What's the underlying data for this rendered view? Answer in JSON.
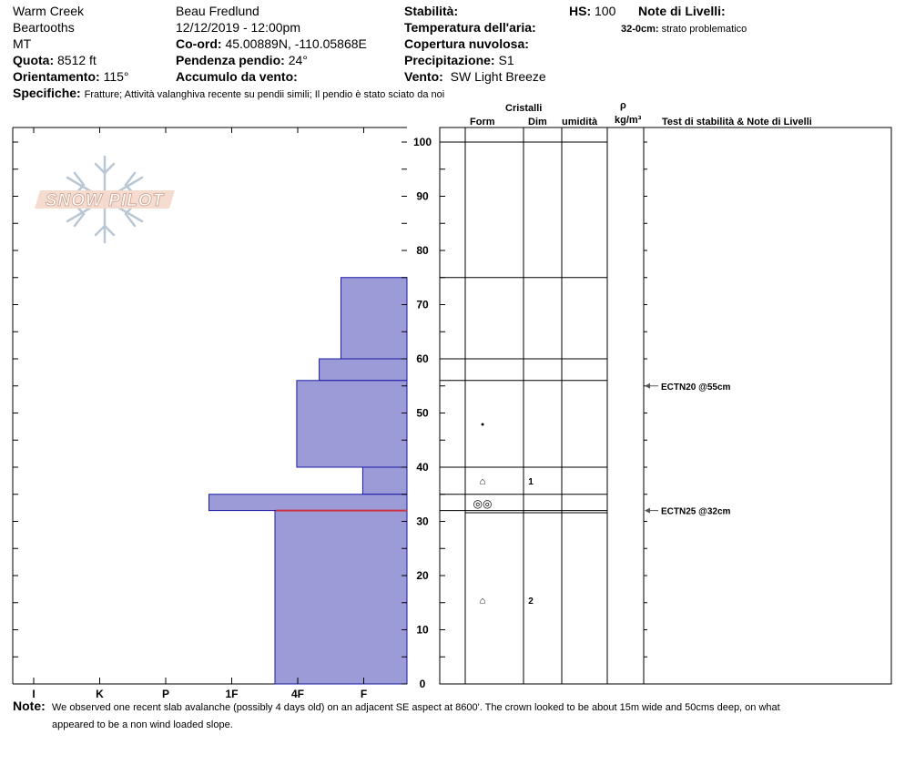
{
  "header": {
    "location": "Warm Creek",
    "range": "Beartooths",
    "state": "MT",
    "elevation_label": "Quota:",
    "elevation_value": "8512 ft",
    "aspect_label": "Orientamento:",
    "aspect_value": "115°",
    "observer": "Beau  Fredlund",
    "datetime": "12/12/2019 - 12:00pm",
    "coord_label": "Co-ord:",
    "coord_value": "45.00889N, -110.05868E",
    "slope_label": "Pendenza pendio:",
    "slope_value": "24°",
    "wind_loading_label": "Accumulo da vento:",
    "wind_loading_value": "",
    "stability_label": "Stabilità:",
    "stability_value": "",
    "air_temp_label": "Temperatura dell'aria:",
    "air_temp_value": "",
    "sky_label": "Copertura nuvolosa:",
    "sky_value": "",
    "precip_label": "Precipitazione:",
    "precip_value": "S1",
    "wind_label": "Vento:",
    "wind_value": "SW Light Breeze",
    "hs_label": "HS:",
    "hs_value": "100",
    "layer_notes_label": "Note di Livelli:",
    "layer_note_depth": "32-0cm:",
    "layer_note_text": "strato problematico",
    "specifics_label": "Specifiche:",
    "specifics_value": "Fratture;  Attività valanghiva recente su pendii simili;  Il pendio è stato sciato da noi"
  },
  "logo": {
    "text": "SNOW PILOT"
  },
  "columns": {
    "crystals": "Cristalli",
    "form": "Form",
    "size": "Dim",
    "moisture": "umidità",
    "rho": "ρ",
    "density_unit": "kg/m³",
    "tests": "Test di stabilità & Note di Livelli"
  },
  "footer": {
    "note_label": "Note:",
    "note_line1": "We observed one recent slab avalanche (possibly 4 days old) on an adjacent SE aspect at 8600'.  The crown looked to be about 15m wide and 50cms deep, on what",
    "note_line2": "appeared to be a non wind loaded slope."
  },
  "colors": {
    "hardness_fill": "#9b9bd8",
    "hardness_stroke": "#1a1aa6",
    "weak_layer": "#cc3344"
  },
  "chart_data": {
    "type": "bar",
    "title": "",
    "xlabel": "",
    "ylabel": "",
    "hardness_categories": [
      "I",
      "K",
      "P",
      "1F",
      "4F",
      "F"
    ],
    "height_ticks": [
      0,
      10,
      20,
      30,
      40,
      50,
      60,
      70,
      80,
      90,
      100
    ],
    "ylim": [
      0,
      100
    ],
    "layers": [
      {
        "top": 100,
        "bottom": 75,
        "hardness_index": 6
      },
      {
        "top": 75,
        "bottom": 60,
        "hardness_index": 5
      },
      {
        "top": 60,
        "bottom": 56,
        "hardness_index": 4.67
      },
      {
        "top": 56,
        "bottom": 40,
        "hardness_index": 4.33
      },
      {
        "top": 40,
        "bottom": 35,
        "hardness_index": 5.33
      },
      {
        "top": 35,
        "bottom": 32,
        "hardness_index": 3
      },
      {
        "top": 32,
        "bottom": 0,
        "hardness_index": 4
      }
    ],
    "weak_layer_height": 32,
    "grains": [
      {
        "height": 48,
        "symbol": "•",
        "size": ""
      },
      {
        "height": 37.5,
        "symbol": "⌂",
        "size": "1"
      },
      {
        "height": 33.3,
        "symbol": "◎◎",
        "size": ""
      },
      {
        "height": 15.5,
        "symbol": "⌂",
        "size": "2"
      }
    ],
    "tests": [
      {
        "height": 55,
        "label": "ECTN20 @55cm"
      },
      {
        "height": 32,
        "label": "ECTN25 @32cm"
      }
    ]
  }
}
